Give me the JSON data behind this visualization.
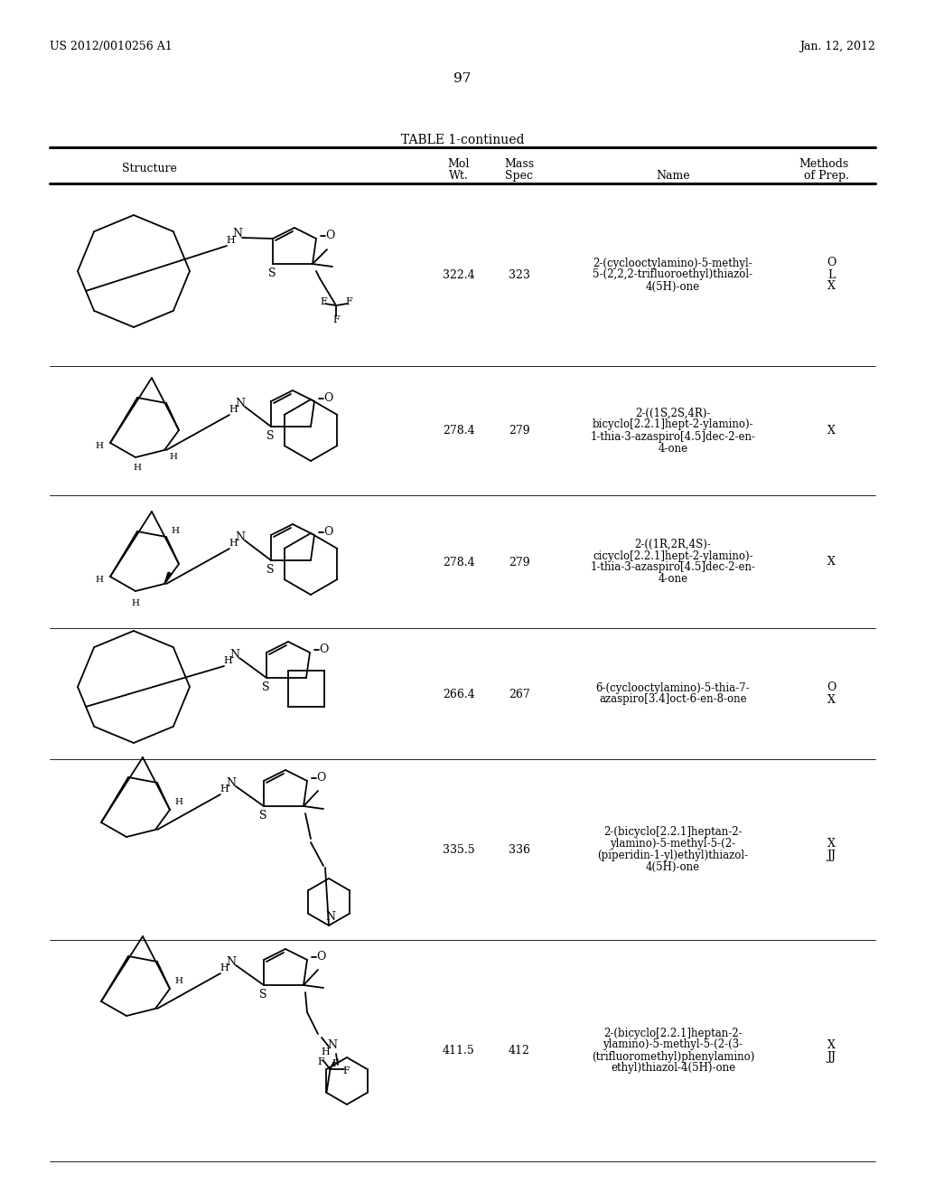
{
  "page_header_left": "US 2012/0010256 A1",
  "page_header_right": "Jan. 12, 2012",
  "page_number": "97",
  "table_title": "TABLE 1-continued",
  "background_color": "#ffffff",
  "rows": [
    {
      "mol_wt": "322.4",
      "mass_spec": "323",
      "name": "2-(cyclooctylamino)-5-methyl-\n5-(2,2,2-trifluoroethyl)thiazol-\n4(5H)-one",
      "methods": "O\nL\nX"
    },
    {
      "mol_wt": "278.4",
      "mass_spec": "279",
      "name": "2-((1S,2S,4R)-\nbicyclo[2.2.1]hept-2-ylamino)-\n1-thia-3-azaspiro[4.5]dec-2-en-\n4-one",
      "methods": "X"
    },
    {
      "mol_wt": "278.4",
      "mass_spec": "279",
      "name": "2-((1R,2R,4S)-\ncicyclo[2.2.1]hept-2-ylamino)-\n1-thia-3-azaspiro[4.5]dec-2-en-\n4-one",
      "methods": "X"
    },
    {
      "mol_wt": "266.4",
      "mass_spec": "267",
      "name": "6-(cyclooctylamino)-5-thia-7-\nazaspiro[3.4]oct-6-en-8-one",
      "methods": "O\nX"
    },
    {
      "mol_wt": "335.5",
      "mass_spec": "336",
      "name": "2-(bicyclo[2.2.1]heptan-2-\nylamino)-5-methyl-5-(2-\n(piperidin-1-yl)ethyl)thiazol-\n4(5H)-one",
      "methods": "X\nJJ"
    },
    {
      "mol_wt": "411.5",
      "mass_spec": "412",
      "name": "2-(bicyclo[2.2.1]heptan-2-\nylamino)-5-methyl-5-(2-(3-\n(trifluoromethyl)phenylamino)\nethyl)thiazol-4(5H)-one",
      "methods": "X\nJJ"
    }
  ]
}
